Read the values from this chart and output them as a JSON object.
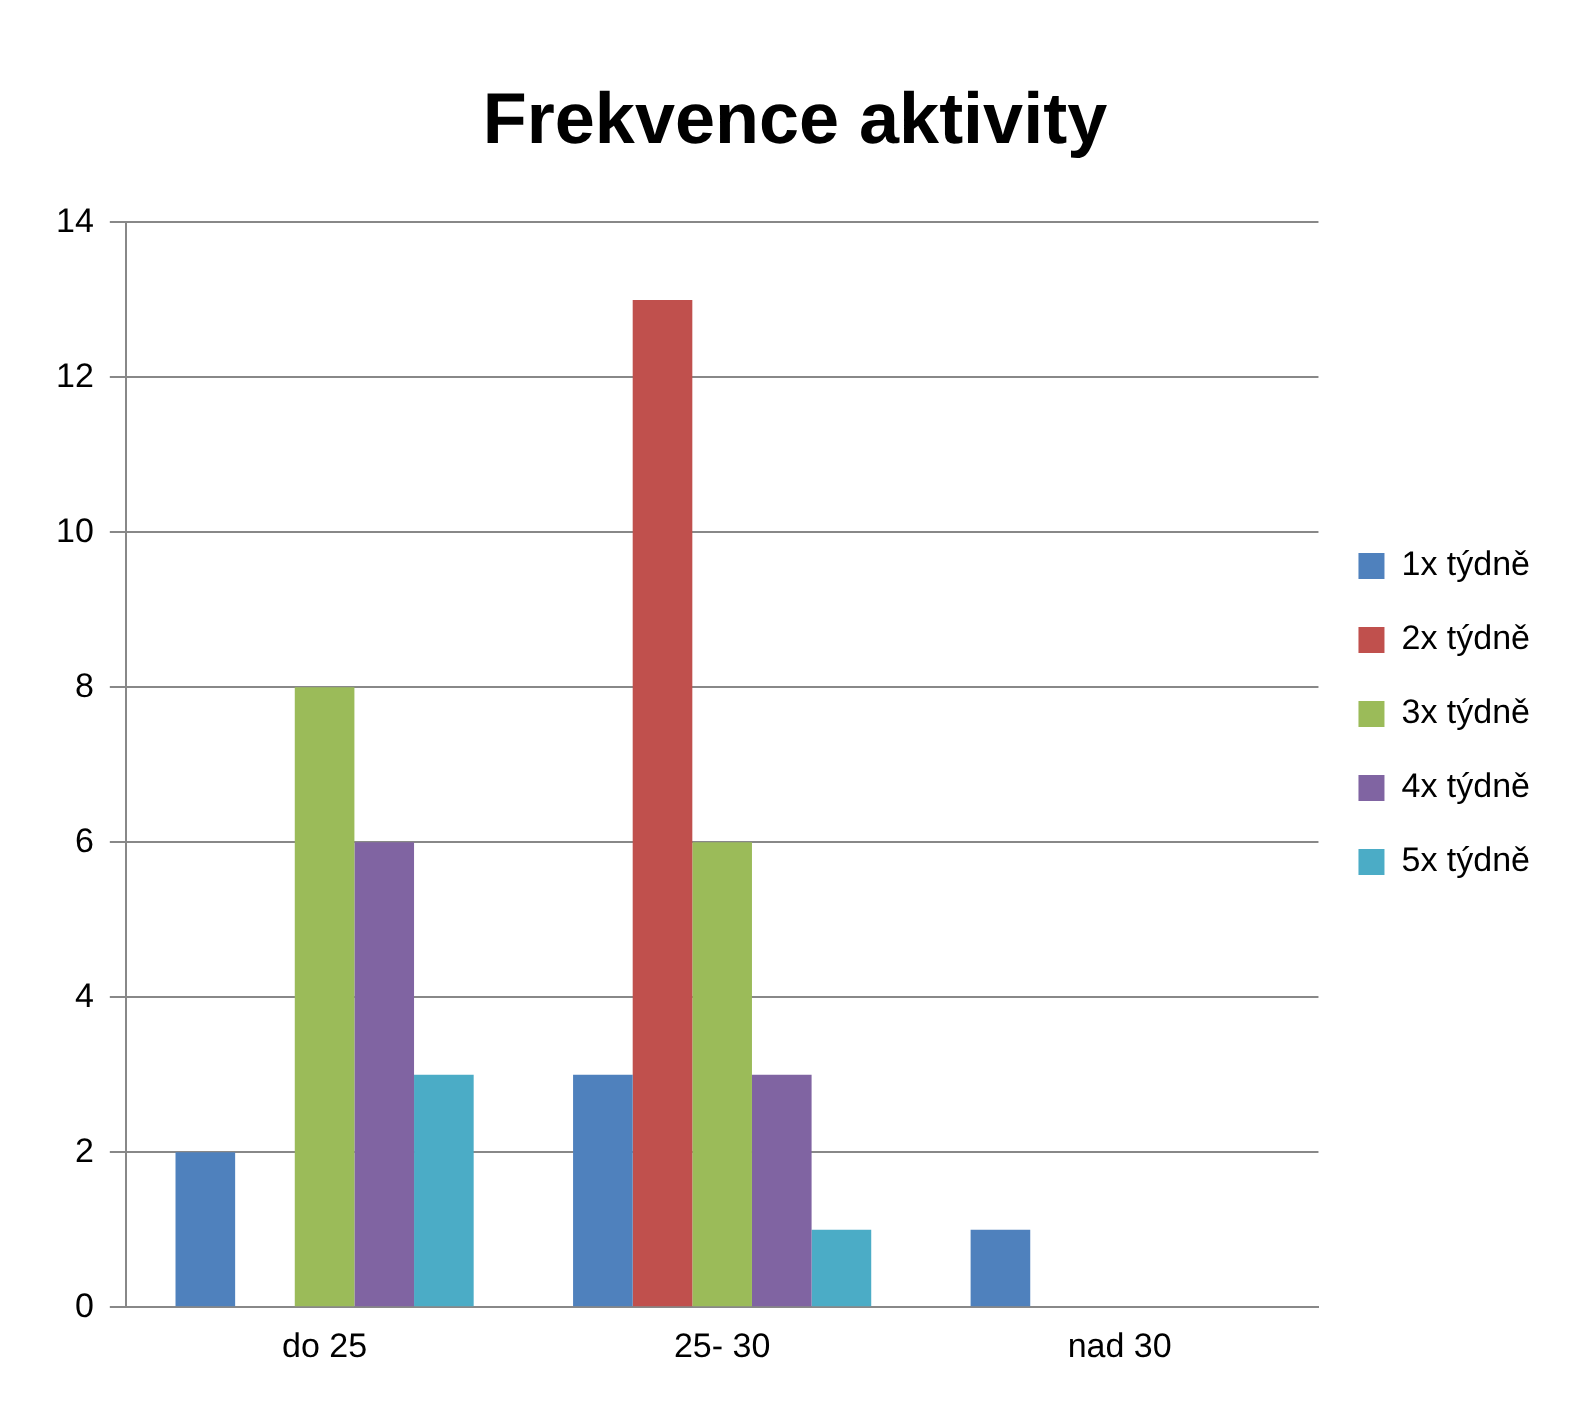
{
  "chart_data": {
    "type": "bar",
    "title": "Frekvence aktivity",
    "categories": [
      "do 25",
      "25- 30",
      "nad 30"
    ],
    "series": [
      {
        "name": "1x týdně",
        "color": "#4f81bd",
        "values": [
          2,
          3,
          1
        ]
      },
      {
        "name": "2x týdně",
        "color": "#c0504d",
        "values": [
          0,
          13,
          0
        ]
      },
      {
        "name": "3x týdně",
        "color": "#9bbb59",
        "values": [
          8,
          6,
          0
        ]
      },
      {
        "name": "4x týdně",
        "color": "#8064a2",
        "values": [
          6,
          3,
          0
        ]
      },
      {
        "name": "5x týdně",
        "color": "#4bacc6",
        "values": [
          3,
          1,
          0
        ]
      }
    ],
    "ylim": [
      0,
      14
    ],
    "yticks": [
      0,
      2,
      4,
      6,
      8,
      10,
      12,
      14
    ],
    "grid": "y",
    "legend": "right"
  }
}
